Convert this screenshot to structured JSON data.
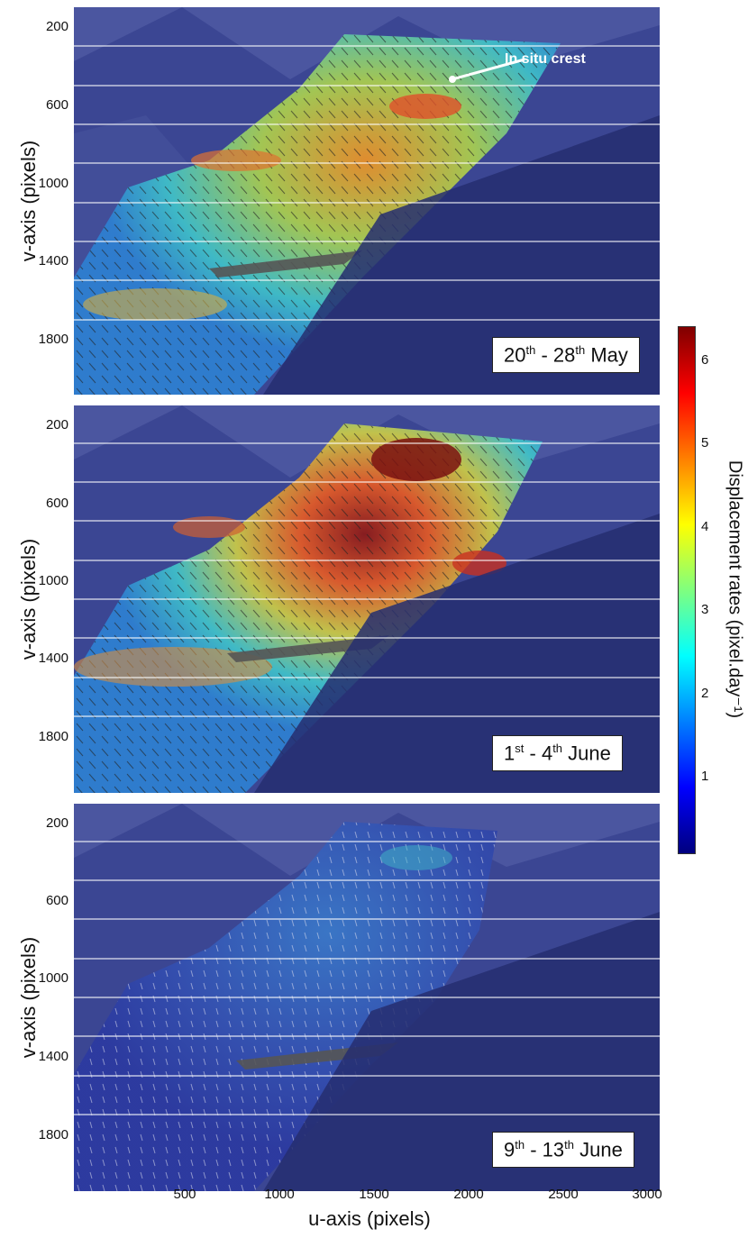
{
  "y_axis_label": "v-axis (pixels)",
  "x_axis_label": "u-axis (pixels)",
  "y_ticks": [
    "200",
    "600",
    "1000",
    "1400",
    "1800"
  ],
  "x_ticks": [
    "500",
    "1000",
    "1500",
    "2000",
    "2500",
    "3000"
  ],
  "annotation": "In situ crest",
  "colorbar": {
    "label": "Displacement rates (pixel.day⁻¹)",
    "ticks": [
      "1",
      "2",
      "3",
      "4",
      "5",
      "6"
    ],
    "colormap": [
      "#00007f",
      "#0000ff",
      "#007fff",
      "#00ffff",
      "#7fff7f",
      "#ffff00",
      "#ff7f00",
      "#ff0000",
      "#7f0000"
    ]
  },
  "panels": [
    {
      "period": {
        "d1": "20",
        "s1": "th",
        "sep": " - ",
        "d2": "28",
        "s2": "th",
        "month": " May"
      },
      "intensity": 0.62
    },
    {
      "period": {
        "d1": "1",
        "s1": "st",
        "sep": " - ",
        "d2": "4",
        "s2": "th",
        "month": " June"
      },
      "intensity": 0.9
    },
    {
      "period": {
        "d1": "9",
        "s1": "th",
        "sep": " - ",
        "d2": "13",
        "s2": "th",
        "month": " June"
      },
      "intensity": 0.15
    }
  ]
}
